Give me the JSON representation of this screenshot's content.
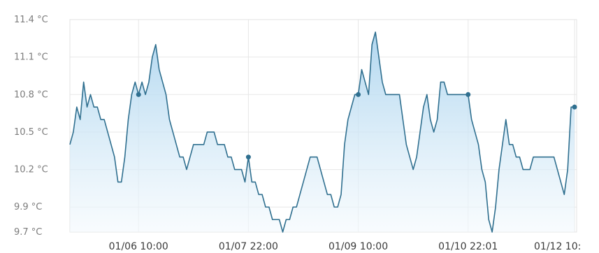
{
  "chart_data": {
    "type": "area",
    "title": "",
    "xlabel": "",
    "ylabel": "",
    "unit": "°C",
    "ylim": [
      9.7,
      11.4
    ],
    "y_ticks": [
      {
        "value": 11.4,
        "label": "11.4 °C"
      },
      {
        "value": 11.1,
        "label": "11.1 °C"
      },
      {
        "value": 10.8,
        "label": "10.8 °C"
      },
      {
        "value": 10.5,
        "label": "10.5 °C"
      },
      {
        "value": 10.2,
        "label": "10.2 °C"
      },
      {
        "value": 9.9,
        "label": "9.9 °C"
      },
      {
        "value": 9.7,
        "label": "9.7 °C"
      }
    ],
    "x_ticks": [
      {
        "index": 20,
        "label": "01/06 10:00"
      },
      {
        "index": 52,
        "label": "01/07 22:00"
      },
      {
        "index": 84,
        "label": "01/09 10:00"
      },
      {
        "index": 116,
        "label": "01/10 22:01"
      },
      {
        "index": 147,
        "label": "01/12 10:"
      }
    ],
    "grid": true,
    "colors": {
      "line": "#2f6f8f",
      "fill_top": "#a9d3ee",
      "fill_bottom": "#f3f9fd",
      "grid": "#e7e7e7"
    },
    "markers": [
      20,
      52,
      84,
      116,
      147
    ],
    "values": [
      10.4,
      10.5,
      10.7,
      10.6,
      10.9,
      10.7,
      10.8,
      10.7,
      10.7,
      10.6,
      10.6,
      10.5,
      10.4,
      10.3,
      10.1,
      10.1,
      10.3,
      10.6,
      10.8,
      10.9,
      10.8,
      10.9,
      10.8,
      10.9,
      11.1,
      11.2,
      11.0,
      10.9,
      10.8,
      10.6,
      10.5,
      10.4,
      10.3,
      10.3,
      10.2,
      10.3,
      10.4,
      10.4,
      10.4,
      10.4,
      10.5,
      10.5,
      10.5,
      10.4,
      10.4,
      10.4,
      10.3,
      10.3,
      10.2,
      10.2,
      10.2,
      10.1,
      10.3,
      10.1,
      10.1,
      10.0,
      10.0,
      9.9,
      9.9,
      9.8,
      9.8,
      9.8,
      9.7,
      9.8,
      9.8,
      9.9,
      9.9,
      10.0,
      10.1,
      10.2,
      10.3,
      10.3,
      10.3,
      10.2,
      10.1,
      10.0,
      10.0,
      9.9,
      9.9,
      10.0,
      10.4,
      10.6,
      10.7,
      10.8,
      10.8,
      11.0,
      10.9,
      10.8,
      11.2,
      11.3,
      11.1,
      10.9,
      10.8,
      10.8,
      10.8,
      10.8,
      10.8,
      10.6,
      10.4,
      10.3,
      10.2,
      10.3,
      10.5,
      10.7,
      10.8,
      10.6,
      10.5,
      10.6,
      10.9,
      10.9,
      10.8,
      10.8,
      10.8,
      10.8,
      10.8,
      10.8,
      10.8,
      10.6,
      10.5,
      10.4,
      10.2,
      10.1,
      9.8,
      9.7,
      9.9,
      10.2,
      10.4,
      10.6,
      10.4,
      10.4,
      10.3,
      10.3,
      10.2,
      10.2,
      10.2,
      10.3,
      10.3,
      10.3,
      10.3,
      10.3,
      10.3,
      10.3,
      10.2,
      10.1,
      10.0,
      10.2,
      10.7,
      10.7
    ]
  }
}
